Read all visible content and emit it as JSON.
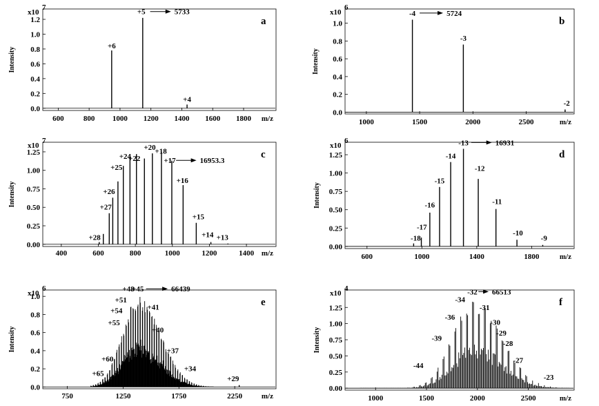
{
  "chart_data": [
    {
      "id": "a",
      "type": "spectrum",
      "panel_label": "a",
      "scale_text": "x10",
      "scale_exp": "7",
      "xlabel": "m/z",
      "ylabel": "Intensity",
      "xlim": [
        500,
        2010
      ],
      "ylim": [
        -0.03,
        1.34
      ],
      "xticks": [
        "600",
        "800",
        "1000",
        "1200",
        "1400",
        "1600",
        "1800"
      ],
      "yticks": [
        "0.0",
        "0.2",
        "0.4",
        "0.6",
        "0.8",
        "1.0",
        "1.2"
      ],
      "peaks": [
        [
          946,
          0.78
        ],
        [
          1147,
          1.22
        ],
        [
          1434,
          0.05
        ]
      ],
      "labels": [
        {
          "text": "+6",
          "x": 946,
          "y": 0.78
        },
        {
          "text": "+5",
          "x": 1138,
          "y": 1.24
        },
        {
          "text": "+4",
          "x": 1434,
          "y": 0.06
        }
      ],
      "mass_label": {
        "text": "5733",
        "arrow_from": 1195,
        "arrow_to": 1330,
        "y": 1.24
      },
      "envelope": null
    },
    {
      "id": "b",
      "type": "spectrum",
      "panel_label": "b",
      "scale_text": "x10",
      "scale_exp": "6",
      "xlabel": "m/z",
      "ylabel": "Intensity",
      "xlim": [
        800,
        2950
      ],
      "ylim": [
        -0.02,
        1.16
      ],
      "xticks": [
        "1000",
        "1500",
        "2000",
        "2500"
      ],
      "yticks": [
        "0.0",
        "0.2",
        "0.4",
        "0.6",
        "0.8",
        "1.0"
      ],
      "peaks": [
        [
          1432,
          1.04
        ],
        [
          1910,
          0.76
        ],
        [
          2865,
          0.03
        ]
      ],
      "labels": [
        {
          "text": "-4",
          "x": 1432,
          "y": 1.06
        },
        {
          "text": "-3",
          "x": 1910,
          "y": 0.78
        },
        {
          "text": "-2",
          "x": 2880,
          "y": 0.05
        }
      ],
      "mass_label": {
        "text": "5724",
        "arrow_from": 1500,
        "arrow_to": 1720,
        "y": 1.06
      },
      "envelope": null
    },
    {
      "id": "c",
      "type": "spectrum",
      "panel_label": "c",
      "scale_text": "x10",
      "scale_exp": "7",
      "xlabel": "m/z",
      "ylabel": "Intensity",
      "xlim": [
        300,
        1560
      ],
      "ylim": [
        -0.03,
        1.38
      ],
      "xticks": [
        "400",
        "600",
        "800",
        "1000",
        "1200",
        "1400"
      ],
      "yticks": [
        "0.00",
        "0.25",
        "0.50",
        "0.75",
        "1.00",
        "1.25"
      ],
      "peaks": [
        [
          605,
          0.03
        ],
        [
          627,
          0.14
        ],
        [
          659,
          0.42
        ],
        [
          678,
          0.63
        ],
        [
          706,
          0.85
        ],
        [
          735,
          1.06
        ],
        [
          771,
          1.19
        ],
        [
          806,
          1.22
        ],
        [
          849,
          1.16
        ],
        [
          892,
          1.23
        ],
        [
          941,
          1.25
        ],
        [
          997,
          1.13
        ],
        [
          1058,
          0.8
        ],
        [
          1129,
          0.29
        ],
        [
          1208,
          0.03
        ],
        [
          1300,
          0.01
        ]
      ],
      "labels": [
        {
          "text": "+28",
          "x": 580,
          "y": 0.03
        },
        {
          "text": "+27",
          "x": 640,
          "y": 0.44
        },
        {
          "text": "+26",
          "x": 658,
          "y": 0.65
        },
        {
          "text": "+25",
          "x": 698,
          "y": 0.98
        },
        {
          "text": "+24",
          "x": 745,
          "y": 1.13
        },
        {
          "text": "+22",
          "x": 795,
          "y": 1.1
        },
        {
          "text": "+20",
          "x": 878,
          "y": 1.25
        },
        {
          "text": "+18",
          "x": 938,
          "y": 1.2
        },
        {
          "text": "+17",
          "x": 986,
          "y": 1.07
        },
        {
          "text": "+16",
          "x": 1054,
          "y": 0.8
        },
        {
          "text": "+15",
          "x": 1140,
          "y": 0.31
        },
        {
          "text": "+14",
          "x": 1190,
          "y": 0.07
        },
        {
          "text": "+13",
          "x": 1270,
          "y": 0.03
        }
      ],
      "mass_label": {
        "text": "16953.3",
        "arrow_from": 1020,
        "arrow_to": 1130,
        "y": 1.07
      },
      "envelope": null
    },
    {
      "id": "d",
      "type": "spectrum",
      "panel_label": "d",
      "scale_text": "x10",
      "scale_exp": "6",
      "xlabel": "m/z",
      "ylabel": "Intensity",
      "xlim": [
        440,
        2110
      ],
      "ylim": [
        -0.03,
        1.42
      ],
      "xticks": [
        "600",
        "1000",
        "1400",
        "1800"
      ],
      "yticks": [
        "0.00",
        "0.25",
        "0.50",
        "0.75",
        "1.00",
        "1.25"
      ],
      "peaks": [
        [
          940,
          0.04
        ],
        [
          996,
          0.12
        ],
        [
          1058,
          0.46
        ],
        [
          1129,
          0.81
        ],
        [
          1210,
          1.15
        ],
        [
          1303,
          1.33
        ],
        [
          1411,
          0.92
        ],
        [
          1540,
          0.51
        ],
        [
          1693,
          0.09
        ],
        [
          1881,
          0.02
        ]
      ],
      "labels": [
        {
          "text": "-18",
          "x": 955,
          "y": 0.05
        },
        {
          "text": "-17",
          "x": 1000,
          "y": 0.2
        },
        {
          "text": "-16",
          "x": 1058,
          "y": 0.5
        },
        {
          "text": "-15",
          "x": 1129,
          "y": 0.83
        },
        {
          "text": "-14",
          "x": 1210,
          "y": 1.17
        },
        {
          "text": "-13",
          "x": 1303,
          "y": 1.35
        },
        {
          "text": "-12",
          "x": 1422,
          "y": 1.0
        },
        {
          "text": "-11",
          "x": 1548,
          "y": 0.55
        },
        {
          "text": "-10",
          "x": 1700,
          "y": 0.12
        },
        {
          "text": "-9",
          "x": 1890,
          "y": 0.05
        }
      ],
      "mass_label": {
        "text": "16931",
        "arrow_from": 1360,
        "arrow_to": 1510,
        "y": 1.35
      },
      "envelope": null
    },
    {
      "id": "e",
      "type": "spectrum",
      "panel_label": "e",
      "scale_text": "x10",
      "scale_exp": "6",
      "xlabel": "m/z",
      "ylabel": "Intensity",
      "xlim": [
        530,
        2620
      ],
      "ylim": [
        -0.02,
        1.07
      ],
      "xticks": [
        "750",
        "1250",
        "1750",
        "2250"
      ],
      "yticks": [
        "0.0",
        "0.2",
        "0.4",
        "0.6",
        "0.8",
        "1.0"
      ],
      "peaks": [
        [
          2290,
          0.02
        ]
      ],
      "labels": [
        {
          "text": "+65",
          "x": 1025,
          "y": 0.1
        },
        {
          "text": "+60",
          "x": 1110,
          "y": 0.26
        },
        {
          "text": "+55",
          "x": 1168,
          "y": 0.66
        },
        {
          "text": "+54",
          "x": 1190,
          "y": 0.79
        },
        {
          "text": "+51",
          "x": 1230,
          "y": 0.91
        },
        {
          "text": "+48",
          "x": 1297,
          "y": 1.03
        },
        {
          "text": "+45",
          "x": 1382,
          "y": 1.03
        },
        {
          "text": "+41",
          "x": 1520,
          "y": 0.83
        },
        {
          "text": "+40",
          "x": 1560,
          "y": 0.58
        },
        {
          "text": "+37",
          "x": 1695,
          "y": 0.35
        },
        {
          "text": "+34",
          "x": 1850,
          "y": 0.15
        },
        {
          "text": "+29",
          "x": 2235,
          "y": 0.04
        }
      ],
      "mass_label": {
        "text": "66439",
        "arrow_from": 1455,
        "arrow_to": 1650,
        "y": 1.03
      },
      "envelope": {
        "from": 960,
        "to": 2060,
        "center": 1390,
        "width": 230,
        "peak": 1.0,
        "spacing": 21,
        "tail": 0.6
      }
    },
    {
      "id": "f",
      "type": "spectrum",
      "panel_label": "f",
      "scale_text": "x10",
      "scale_exp": "4",
      "xlabel": "m/z",
      "ylabel": "Intensity",
      "xlim": [
        700,
        2950
      ],
      "ylim": [
        -0.03,
        1.52
      ],
      "xticks": [
        "1000",
        "1500",
        "2000",
        "2500"
      ],
      "yticks": [
        "0.00",
        "0.25",
        "0.50",
        "0.75",
        "1.00",
        "1.25"
      ],
      "peaks": [],
      "labels": [
        {
          "text": "-44",
          "x": 1420,
          "y": 0.28
        },
        {
          "text": "-39",
          "x": 1600,
          "y": 0.7
        },
        {
          "text": "-36",
          "x": 1730,
          "y": 1.03
        },
        {
          "text": "-34",
          "x": 1830,
          "y": 1.3
        },
        {
          "text": "-32",
          "x": 1950,
          "y": 1.42
        },
        {
          "text": "-31",
          "x": 2070,
          "y": 1.18
        },
        {
          "text": "-30",
          "x": 2175,
          "y": 0.95
        },
        {
          "text": "-29",
          "x": 2235,
          "y": 0.78
        },
        {
          "text": "-28",
          "x": 2300,
          "y": 0.62
        },
        {
          "text": "-27",
          "x": 2400,
          "y": 0.36
        },
        {
          "text": "-23",
          "x": 2700,
          "y": 0.1
        }
      ],
      "mass_label": {
        "text": "66513",
        "arrow_from": 2010,
        "arrow_to": 2110,
        "y": 1.42
      },
      "envelope": {
        "from": 850,
        "to": 2900,
        "center": 1960,
        "width": 320,
        "peak": 1.37,
        "spacing": 58,
        "tail": 0.55
      }
    }
  ]
}
